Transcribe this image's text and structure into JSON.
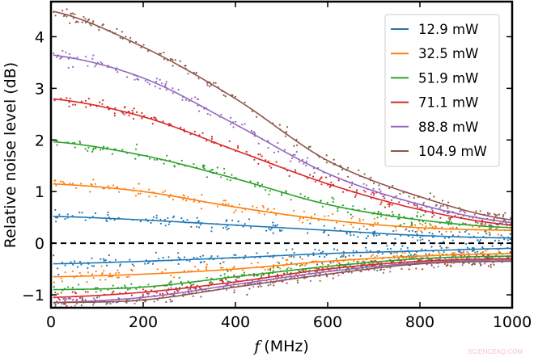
{
  "chart_data": {
    "type": "scatter",
    "title": "",
    "xlabel_italic": "f",
    "xlabel_unit": "(MHz)",
    "ylabel": "Relative noise level (dB)",
    "xlim": [
      0,
      1000
    ],
    "ylim": [
      -1.25,
      4.68
    ],
    "xticks": [
      "0",
      "200",
      "400",
      "600",
      "800",
      "1000"
    ],
    "yticks": [
      "−1",
      "0",
      "1",
      "2",
      "3",
      "4"
    ],
    "ytick_values": [
      -1,
      0,
      1,
      2,
      3,
      4
    ],
    "xtick_values": [
      0,
      200,
      400,
      600,
      800,
      1000
    ],
    "grid": false,
    "legend_position": "top-right",
    "reference_line": {
      "y": 0,
      "style": "dashed",
      "color": "#000000"
    },
    "x": [
      0,
      200,
      400,
      600,
      800,
      1000
    ],
    "series": [
      {
        "name": "12.9 mW",
        "color": "#1f77b4",
        "upper": [
          0.52,
          0.45,
          0.35,
          0.25,
          0.15,
          0.1
        ],
        "lower": [
          -0.4,
          -0.35,
          -0.28,
          -0.2,
          -0.15,
          -0.1
        ]
      },
      {
        "name": "32.5 mW",
        "color": "#ff7f0e",
        "upper": [
          1.15,
          1.0,
          0.7,
          0.45,
          0.3,
          0.25
        ],
        "lower": [
          -0.65,
          -0.6,
          -0.5,
          -0.35,
          -0.25,
          -0.2
        ]
      },
      {
        "name": "51.9 mW",
        "color": "#2ca02c",
        "upper": [
          1.97,
          1.7,
          1.25,
          0.75,
          0.45,
          0.3
        ],
        "lower": [
          -0.9,
          -0.85,
          -0.65,
          -0.45,
          -0.3,
          -0.25
        ]
      },
      {
        "name": "71.1 mW",
        "color": "#d62728",
        "upper": [
          2.8,
          2.45,
          1.8,
          1.15,
          0.65,
          0.35
        ],
        "lower": [
          -1.05,
          -0.95,
          -0.75,
          -0.5,
          -0.35,
          -0.3
        ]
      },
      {
        "name": "88.8 mW",
        "color": "#9467bd",
        "upper": [
          3.65,
          3.2,
          2.3,
          1.35,
          0.75,
          0.4
        ],
        "lower": [
          -1.15,
          -1.05,
          -0.8,
          -0.55,
          -0.38,
          -0.32
        ]
      },
      {
        "name": "104.9 mW",
        "color": "#8c564b",
        "upper": [
          4.5,
          3.8,
          2.8,
          1.6,
          0.9,
          0.45
        ],
        "lower": [
          -1.15,
          -1.1,
          -0.85,
          -0.6,
          -0.4,
          -0.35
        ]
      }
    ]
  },
  "watermark": "SCIENCEAQ.COM"
}
